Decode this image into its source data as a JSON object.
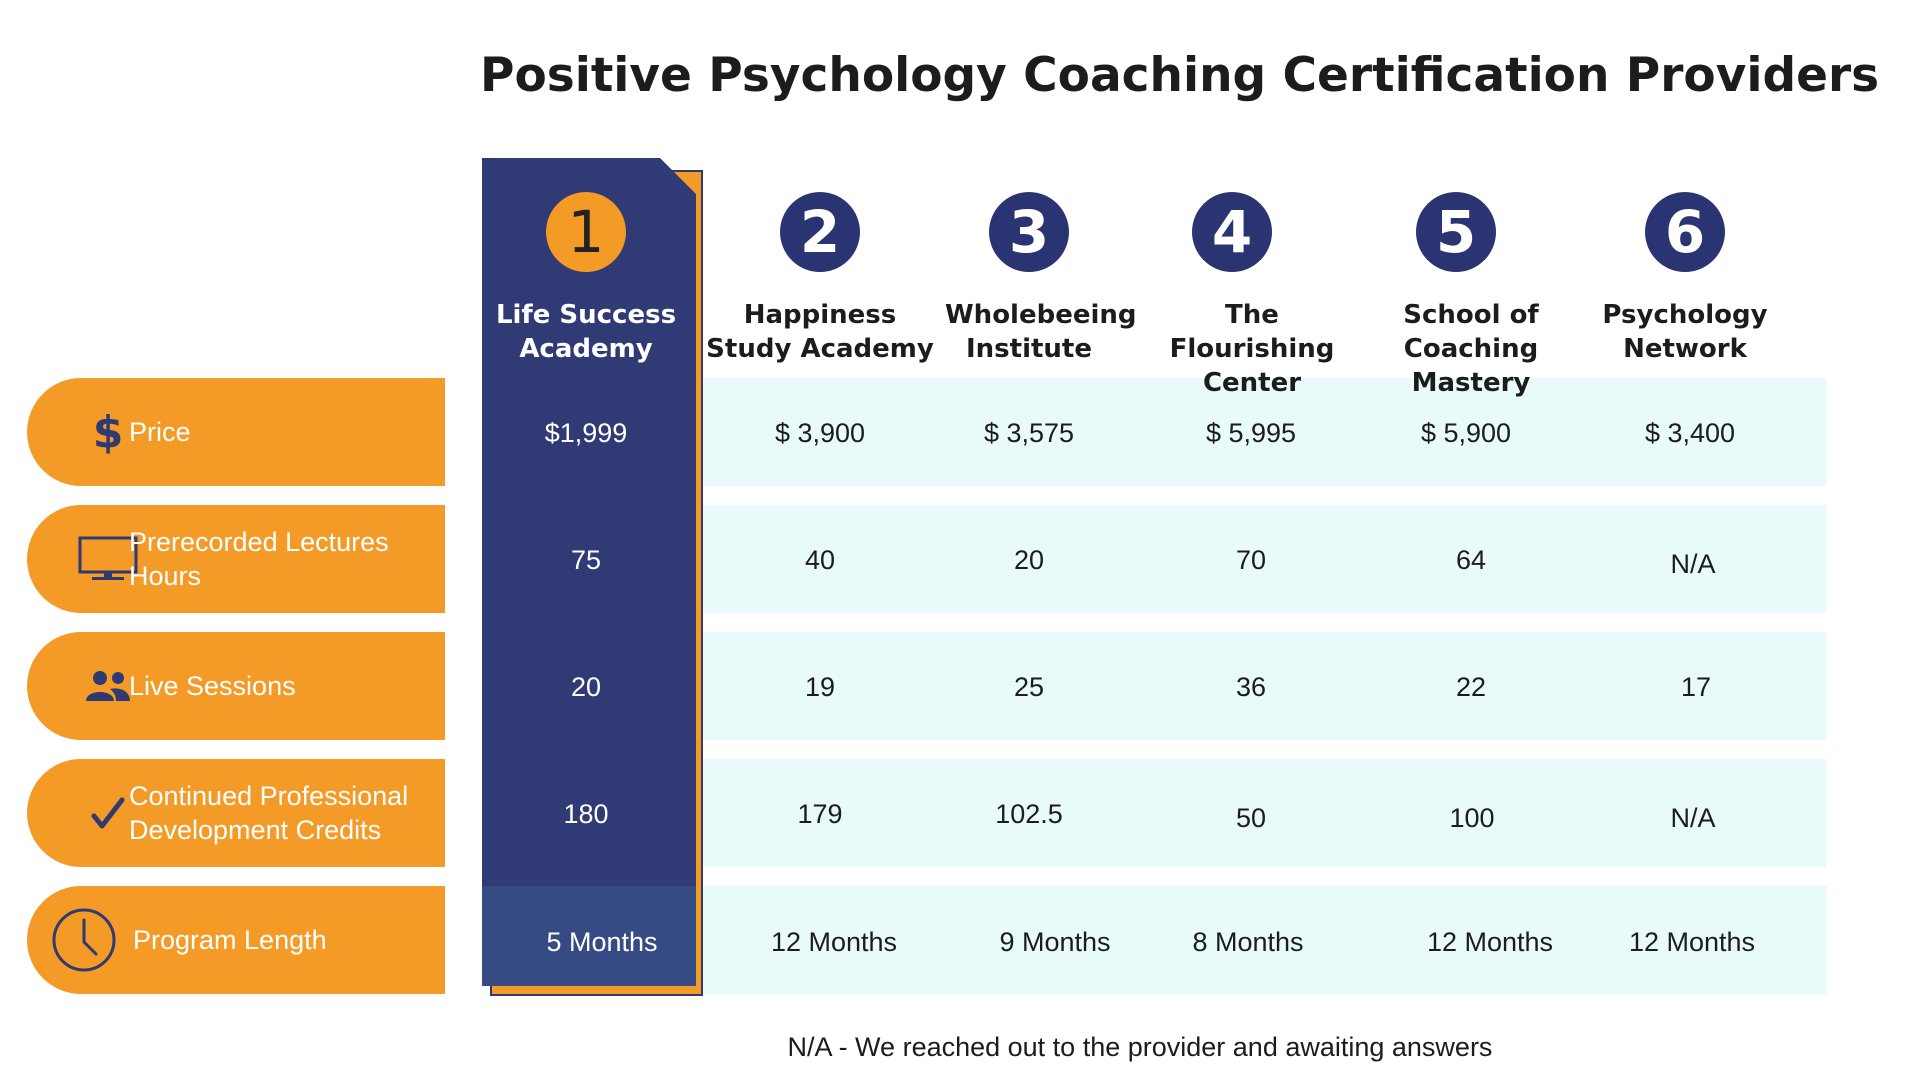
{
  "title": "Positive Psychology Coaching Certification Providers",
  "providers": [
    {
      "rank": "1",
      "name": "Life Success Academy"
    },
    {
      "rank": "2",
      "name": "Happiness Study Academy"
    },
    {
      "rank": "3",
      "name": "Wholebeeing Institute"
    },
    {
      "rank": "4",
      "name": "The Flourishing Center"
    },
    {
      "rank": "5",
      "name": "School of Coaching Mastery"
    },
    {
      "rank": "6",
      "name": "Psychology Network"
    }
  ],
  "rows": [
    {
      "label": "Price",
      "icon": "dollar-icon",
      "values": [
        "$1,999",
        "$ 3,900",
        "$ 3,575",
        "$ 5,995",
        "$ 5,900",
        "$ 3,400"
      ]
    },
    {
      "label": "Prerecorded Lectures Hours",
      "icon": "monitor-icon",
      "values": [
        "75",
        "40",
        "20",
        "70",
        "64",
        "N/A"
      ]
    },
    {
      "label": "Live Sessions",
      "icon": "people-icon",
      "values": [
        "20",
        "19",
        "25",
        "36",
        "22",
        "17"
      ]
    },
    {
      "label": "Continued Professional Development Credits",
      "icon": "checkmark-icon",
      "values": [
        "180",
        "179",
        "102.5",
        "50",
        "100",
        "N/A"
      ]
    },
    {
      "label": "Program Length",
      "icon": "clock-icon",
      "values": [
        "5 Months",
        "12 Months",
        "9 Months",
        "8 Months",
        "12 Months",
        "12 Months"
      ]
    }
  ],
  "footnote": "N/A - We reached out to the provider and awaiting answers",
  "colors": {
    "orange": "#f39a27",
    "navy": "#303a74",
    "row_bg": "#e9fafa"
  }
}
